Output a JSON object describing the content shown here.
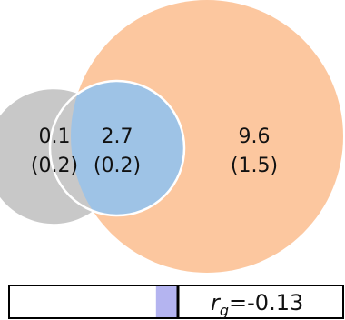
{
  "chart_data": [
    {
      "type": "venn",
      "regions": [
        {
          "id": "left_only",
          "value": "0.1",
          "se": "(0.2)"
        },
        {
          "id": "overlap",
          "value": "2.7",
          "se": "(0.2)"
        },
        {
          "id": "right_only",
          "value": "9.6",
          "se": "(1.5)"
        }
      ],
      "colors": {
        "left": "#9ec3e6",
        "overlap": "#c8c8c8",
        "right": "#fcc79f",
        "outline": "#ffffff"
      }
    },
    {
      "type": "bar",
      "orientation": "horizontal",
      "xlim": [
        -1,
        1
      ],
      "value": -0.13,
      "label_symbol": "r",
      "label_subscript": "g",
      "label_value": "=-0.13",
      "colors": {
        "bar": "#b4b4f0",
        "zero_line": "#000000",
        "frame": "#000000"
      }
    }
  ]
}
